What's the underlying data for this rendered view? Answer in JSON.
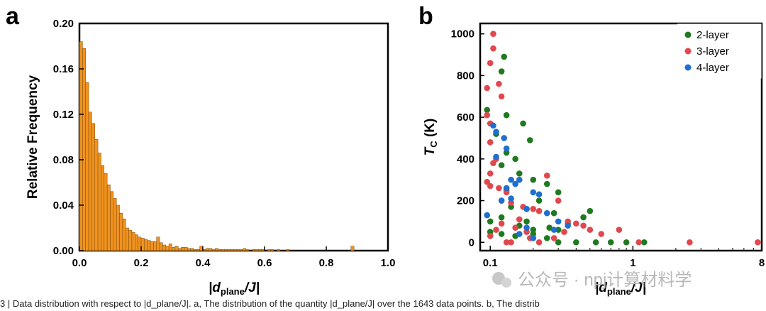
{
  "chart_data": [
    {
      "panel": "a",
      "type": "bar",
      "ylabel": "Relative Frequency",
      "xlabel_main": "|d",
      "xlabel_sub": "plane",
      "xlabel_tail": "/J|",
      "xlim": [
        0,
        1.0
      ],
      "ylim": [
        0,
        0.2
      ],
      "xticks": [
        "0.0",
        "0.2",
        "0.4",
        "0.6",
        "0.8",
        "1.0"
      ],
      "yticks": [
        "0.00",
        "0.04",
        "0.08",
        "0.12",
        "0.16",
        "0.20"
      ],
      "bin_width": 0.01,
      "bar_color": "#f0921e",
      "values": [
        0.184,
        0.178,
        0.148,
        0.122,
        0.112,
        0.098,
        0.086,
        0.075,
        0.068,
        0.058,
        0.052,
        0.046,
        0.04,
        0.033,
        0.028,
        0.02,
        0.018,
        0.016,
        0.014,
        0.012,
        0.011,
        0.01,
        0.009,
        0.008,
        0.008,
        0.012,
        0.007,
        0.005,
        0.004,
        0.006,
        0.003,
        0.004,
        0.002,
        0.003,
        0.003,
        0.002,
        0.002,
        0.001,
        0.001,
        0.004,
        0.001,
        0.002,
        0.002,
        0.001,
        0.002,
        0.001,
        0.001,
        0.001,
        0.001,
        0.001,
        0.001,
        0.001,
        0.001,
        0.002,
        0.001,
        0.0,
        0.001,
        0.001,
        0.001,
        0.001,
        0.0,
        0.001,
        0.001,
        0.0,
        0.001,
        0.0,
        0.0,
        0.001,
        0.0,
        0.0,
        0.0,
        0.0,
        0.0,
        0.0,
        0.0,
        0.0,
        0.0,
        0.0,
        0.0,
        0.0,
        0.0,
        0.0,
        0.0,
        0.0,
        0.0,
        0.0,
        0.0,
        0.0,
        0.004,
        0.0,
        0.0,
        0.0,
        0.0,
        0.0,
        0.0,
        0.0,
        0.0,
        0.0,
        0.0,
        0.0
      ]
    },
    {
      "panel": "b",
      "type": "scatter",
      "ylabel_main": "T",
      "ylabel_sub": "C",
      "ylabel_tail": " (K)",
      "xlabel_main": "|d",
      "xlabel_sub": "plane",
      "xlabel_tail": "/J|",
      "xscale": "log",
      "xlim": [
        0.085,
        8
      ],
      "ylim": [
        -40,
        1050
      ],
      "xticks": [
        {
          "v": 0.1,
          "label": "0.1"
        },
        {
          "v": 1,
          "label": "1"
        },
        {
          "v": 8,
          "label": "8"
        }
      ],
      "yticks": [
        "0",
        "200",
        "400",
        "600",
        "800",
        "1000"
      ],
      "legend_position": "top-right",
      "series": [
        {
          "name": "2-layer",
          "color": "#1f7a1f",
          "points": [
            [
              0.095,
              635
            ],
            [
              0.12,
              820
            ],
            [
              0.125,
              890
            ],
            [
              0.13,
              610
            ],
            [
              0.11,
              520
            ],
            [
              0.13,
              430
            ],
            [
              0.15,
              400
            ],
            [
              0.17,
              570
            ],
            [
              0.19,
              490
            ],
            [
              0.12,
              370
            ],
            [
              0.16,
              330
            ],
            [
              0.2,
              300
            ],
            [
              0.25,
              280
            ],
            [
              0.3,
              240
            ],
            [
              0.22,
              200
            ],
            [
              0.18,
              160
            ],
            [
              0.14,
              170
            ],
            [
              0.12,
              120
            ],
            [
              0.1,
              100
            ],
            [
              0.16,
              80
            ],
            [
              0.2,
              60
            ],
            [
              0.3,
              60
            ],
            [
              0.45,
              120
            ],
            [
              0.5,
              150
            ],
            [
              0.3,
              0
            ],
            [
              0.4,
              0
            ],
            [
              0.55,
              0
            ],
            [
              0.7,
              0
            ],
            [
              0.9,
              0
            ],
            [
              1.2,
              0
            ],
            [
              0.25,
              20
            ],
            [
              0.15,
              30
            ],
            [
              0.12,
              40
            ],
            [
              0.1,
              50
            ],
            [
              0.35,
              90
            ],
            [
              0.28,
              140
            ],
            [
              0.13,
              250
            ],
            [
              0.2,
              40
            ],
            [
              0.18,
              100
            ],
            [
              0.26,
              70
            ]
          ]
        },
        {
          "name": "3-layer",
          "color": "#e0484e",
          "points": [
            [
              0.105,
              1000
            ],
            [
              0.1,
              860
            ],
            [
              0.105,
              930
            ],
            [
              0.095,
              740
            ],
            [
              0.115,
              760
            ],
            [
              0.12,
              700
            ],
            [
              0.095,
              610
            ],
            [
              0.1,
              570
            ],
            [
              0.1,
              480
            ],
            [
              0.11,
              400
            ],
            [
              0.105,
              380
            ],
            [
              0.1,
              330
            ],
            [
              0.095,
              290
            ],
            [
              0.1,
              270
            ],
            [
              0.115,
              260
            ],
            [
              0.13,
              240
            ],
            [
              0.12,
              200
            ],
            [
              0.14,
              190
            ],
            [
              0.17,
              170
            ],
            [
              0.2,
              160
            ],
            [
              0.22,
              150
            ],
            [
              0.25,
              320
            ],
            [
              0.3,
              200
            ],
            [
              0.35,
              100
            ],
            [
              0.4,
              90
            ],
            [
              0.45,
              80
            ],
            [
              0.5,
              60
            ],
            [
              0.6,
              40
            ],
            [
              0.8,
              60
            ],
            [
              1.1,
              0
            ],
            [
              2.5,
              0
            ],
            [
              7.5,
              0
            ],
            [
              0.18,
              50
            ],
            [
              0.15,
              70
            ],
            [
              0.12,
              90
            ],
            [
              0.11,
              60
            ],
            [
              0.1,
              30
            ],
            [
              0.13,
              0
            ],
            [
              0.22,
              0
            ],
            [
              0.28,
              20
            ],
            [
              0.33,
              50
            ],
            [
              0.16,
              110
            ],
            [
              0.19,
              20
            ],
            [
              0.14,
              0
            ]
          ]
        },
        {
          "name": "4-layer",
          "color": "#1f6fd0",
          "points": [
            [
              0.105,
              560
            ],
            [
              0.11,
              530
            ],
            [
              0.125,
              500
            ],
            [
              0.13,
              450
            ],
            [
              0.11,
              410
            ],
            [
              0.14,
              300
            ],
            [
              0.15,
              280
            ],
            [
              0.16,
              300
            ],
            [
              0.2,
              240
            ],
            [
              0.22,
              230
            ],
            [
              0.12,
              200
            ],
            [
              0.14,
              210
            ],
            [
              0.18,
              160
            ],
            [
              0.25,
              140
            ],
            [
              0.3,
              100
            ],
            [
              0.35,
              80
            ],
            [
              0.28,
              60
            ],
            [
              0.095,
              130
            ],
            [
              0.16,
              40
            ],
            [
              0.2,
              20
            ],
            [
              0.13,
              260
            ],
            [
              0.18,
              70
            ]
          ]
        }
      ]
    }
  ],
  "caption": {
    "text": "3 | Data distribution with respect to |d_plane/J|. a, The distribution of the quantity |d_plane/J| over the 1643 data points. b, The distrib"
  },
  "watermark": {
    "text": "公众号 · npj计算材料学"
  }
}
